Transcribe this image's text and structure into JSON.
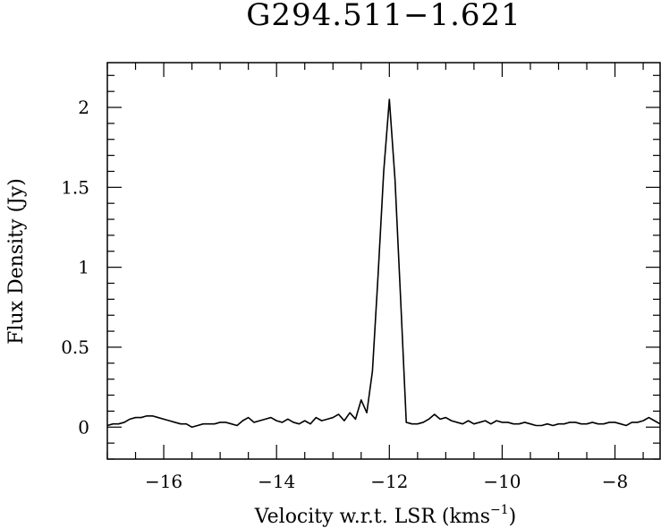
{
  "chart_data": {
    "type": "line",
    "title": "G294.511−1.621",
    "xlabel": "Velocity w.r.t. LSR (kms",
    "xlabel_sup": "−1",
    "xlabel_close": ")",
    "ylabel": "Flux Density (Jy)",
    "xlim": [
      -17.0,
      -7.2
    ],
    "ylim": [
      -0.2,
      2.28
    ],
    "xticks": [
      -16,
      -14,
      -12,
      -10,
      -8
    ],
    "xtick_labels": [
      "−16",
      "−14",
      "−12",
      "−10",
      "−8"
    ],
    "yticks": [
      0,
      0.5,
      1,
      1.5,
      2
    ],
    "ytick_labels": [
      "0",
      "0.5",
      "1",
      "1.5",
      "2"
    ],
    "grid": false,
    "series": [
      {
        "x": [
          -17.0,
          -16.9,
          -16.8,
          -16.7,
          -16.6,
          -16.5,
          -16.4,
          -16.3,
          -16.2,
          -16.1,
          -16.0,
          -15.9,
          -15.8,
          -15.7,
          -15.6,
          -15.5,
          -15.4,
          -15.3,
          -15.2,
          -15.1,
          -15.0,
          -14.9,
          -14.8,
          -14.7,
          -14.6,
          -14.5,
          -14.4,
          -14.3,
          -14.2,
          -14.1,
          -14.0,
          -13.9,
          -13.8,
          -13.7,
          -13.6,
          -13.5,
          -13.4,
          -13.3,
          -13.2,
          -13.1,
          -13.0,
          -12.9,
          -12.8,
          -12.7,
          -12.6,
          -12.5,
          -12.4,
          -12.3,
          -12.2,
          -12.1,
          -12.0,
          -11.9,
          -11.8,
          -11.7,
          -11.6,
          -11.5,
          -11.4,
          -11.3,
          -11.2,
          -11.1,
          -11.0,
          -10.9,
          -10.8,
          -10.7,
          -10.6,
          -10.5,
          -10.4,
          -10.3,
          -10.2,
          -10.1,
          -10.0,
          -9.9,
          -9.8,
          -9.7,
          -9.6,
          -9.5,
          -9.4,
          -9.3,
          -9.2,
          -9.1,
          -9.0,
          -8.9,
          -8.8,
          -8.7,
          -8.6,
          -8.5,
          -8.4,
          -8.3,
          -8.2,
          -8.1,
          -8.0,
          -7.9,
          -7.8,
          -7.7,
          -7.6,
          -7.5,
          -7.4,
          -7.3,
          -7.2
        ],
        "y": [
          0.01,
          0.02,
          0.02,
          0.03,
          0.05,
          0.06,
          0.06,
          0.07,
          0.07,
          0.06,
          0.05,
          0.04,
          0.03,
          0.02,
          0.02,
          0.0,
          0.01,
          0.02,
          0.02,
          0.02,
          0.03,
          0.03,
          0.02,
          0.01,
          0.04,
          0.06,
          0.03,
          0.04,
          0.05,
          0.06,
          0.04,
          0.03,
          0.05,
          0.03,
          0.02,
          0.04,
          0.02,
          0.06,
          0.04,
          0.05,
          0.06,
          0.08,
          0.04,
          0.09,
          0.05,
          0.17,
          0.09,
          0.35,
          0.95,
          1.6,
          2.05,
          1.55,
          0.8,
          0.03,
          0.02,
          0.02,
          0.03,
          0.05,
          0.08,
          0.05,
          0.06,
          0.04,
          0.03,
          0.02,
          0.04,
          0.02,
          0.03,
          0.04,
          0.02,
          0.04,
          0.03,
          0.03,
          0.02,
          0.02,
          0.03,
          0.02,
          0.01,
          0.01,
          0.02,
          0.01,
          0.02,
          0.02,
          0.03,
          0.03,
          0.02,
          0.02,
          0.03,
          0.02,
          0.02,
          0.03,
          0.03,
          0.02,
          0.01,
          0.03,
          0.03,
          0.04,
          0.06,
          0.04,
          0.02
        ]
      }
    ]
  }
}
